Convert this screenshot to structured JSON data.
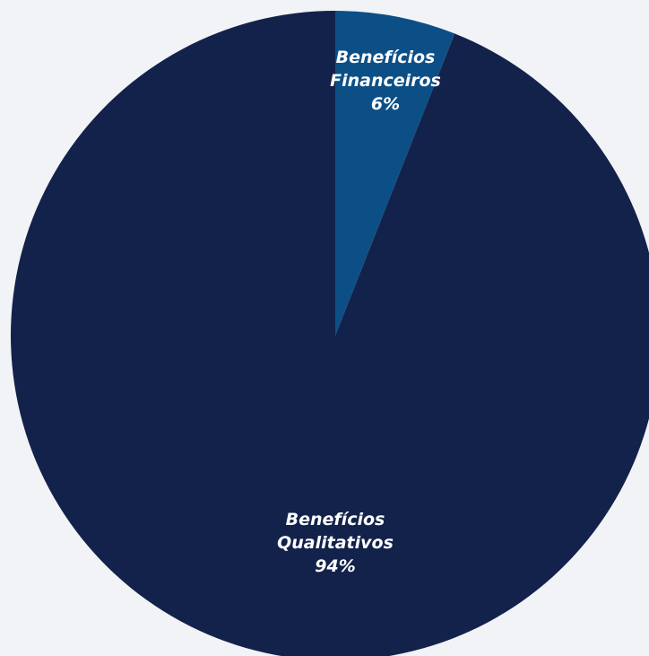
{
  "chart_data": {
    "type": "pie",
    "slices": [
      {
        "label_lines": [
          "Benefícios",
          "Financeiros"
        ],
        "value_label": "6%",
        "value": 6,
        "color": "#0c4f86"
      },
      {
        "label_lines": [
          "Benefícios",
          "Qualitativos"
        ],
        "value_label": "94%",
        "value": 94,
        "color": "#13224a"
      }
    ],
    "start": "top",
    "direction": "clockwise",
    "legend": "none"
  },
  "page": {
    "background": "#f2f3f6"
  }
}
